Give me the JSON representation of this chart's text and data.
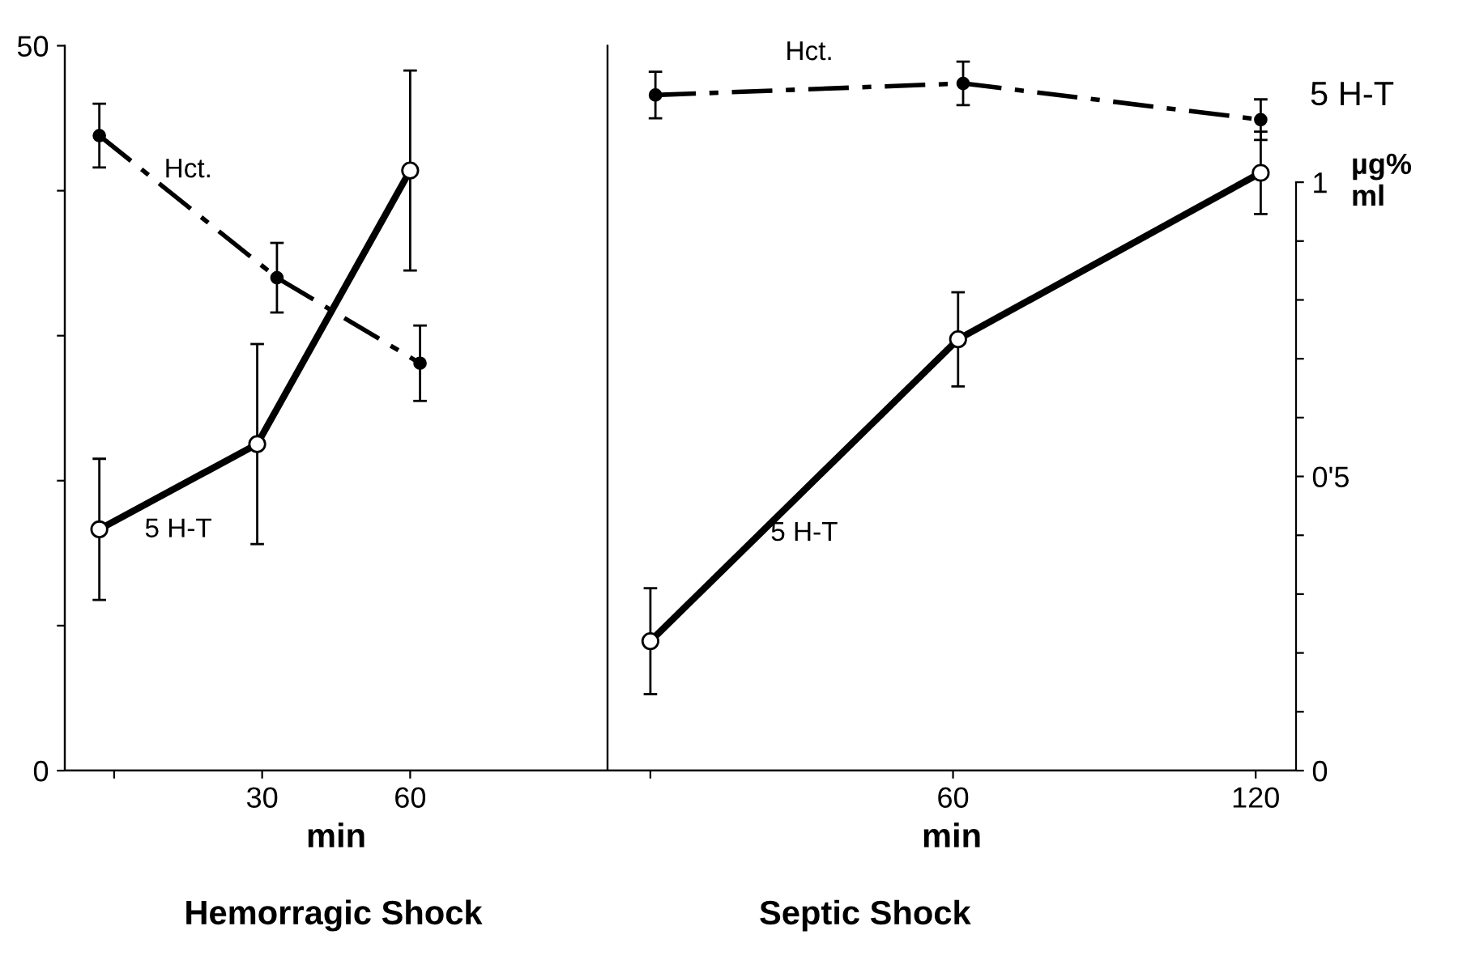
{
  "chart_data": [
    {
      "type": "line",
      "title": "Hemorragic Shock",
      "xlabel": "min",
      "xlim": [
        -10,
        100
      ],
      "xticks": [
        {
          "value": 0,
          "label": null
        },
        30,
        60
      ],
      "ylim": [
        0,
        50
      ],
      "yticks": [
        0,
        {
          "value": 10,
          "label": null
        },
        {
          "value": 20,
          "label": null
        },
        {
          "value": 30,
          "label": null
        },
        {
          "value": 40,
          "label": null
        },
        50
      ],
      "y2lim": [
        0,
        1.232
      ],
      "marker": "circle",
      "grid": false,
      "legend": false,
      "series": [
        {
          "name": "Hct.",
          "color": "#000000",
          "line_style": "dashed",
          "x": [
            -3,
            33,
            62
          ],
          "values": [
            43.8,
            34.0,
            28.1
          ],
          "errors": [
            2.2,
            2.4,
            2.6
          ]
        },
        {
          "name": "5 H-T",
          "color": "#000000",
          "line_style": "solid",
          "axis": "y2",
          "x": [
            -3,
            29,
            60
          ],
          "values": [
            0.41,
            0.555,
            1.02
          ],
          "errors": [
            0.12,
            0.17,
            0.17
          ]
        }
      ]
    },
    {
      "type": "line",
      "title": "Septic Shock",
      "xlabel": "min",
      "y2label": "5 H-T",
      "annotations": [
        "µg%\nml"
      ],
      "xlim": [
        -8.5,
        128
      ],
      "xticks": [
        {
          "value": 0,
          "label": null
        },
        60,
        120
      ],
      "ylim": [
        0,
        50
      ],
      "y2lim": [
        0,
        1.232
      ],
      "y2ticks": [
        0,
        {
          "value": 0.1,
          "label": null
        },
        {
          "value": 0.2,
          "label": null
        },
        {
          "value": 0.3,
          "label": null
        },
        {
          "value": 0.4,
          "label": null
        },
        {
          "value": 0.5,
          "label": "0'5"
        },
        {
          "value": 0.6,
          "label": null
        },
        {
          "value": 0.7,
          "label": null
        },
        {
          "value": 0.8,
          "label": null
        },
        {
          "value": 0.9,
          "label": null
        },
        1
      ],
      "marker": "circle",
      "grid": false,
      "legend": false,
      "series": [
        {
          "name": "Hct.",
          "color": "#000000",
          "line_style": "dashed",
          "x": [
            1,
            62,
            121
          ],
          "values": [
            46.6,
            47.4,
            44.9
          ],
          "errors": [
            1.6,
            1.5,
            1.4
          ]
        },
        {
          "name": "5 H-T",
          "color": "#000000",
          "line_style": "solid",
          "axis": "y2",
          "x": [
            0,
            61,
            121
          ],
          "values": [
            0.22,
            0.733,
            1.016
          ],
          "errors": [
            0.09,
            0.08,
            0.07
          ]
        }
      ]
    }
  ]
}
